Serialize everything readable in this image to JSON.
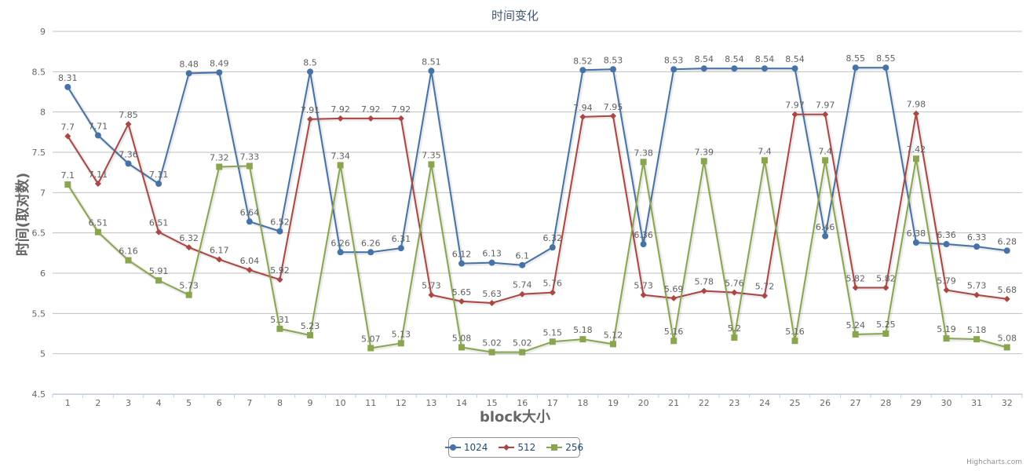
{
  "credits": "Highcharts.com",
  "chart_data": {
    "type": "line",
    "title": "时间变化",
    "xlabel": "block大小",
    "ylabel": "时间(取对数)",
    "ylim": [
      4.5,
      9
    ],
    "yticks": [
      "4.5",
      "5",
      "5.5",
      "6",
      "6.5",
      "7",
      "7.5",
      "8",
      "8.5",
      "9"
    ],
    "grid": true,
    "legend_position": "bottom-center",
    "categories": [
      "1",
      "2",
      "3",
      "4",
      "5",
      "6",
      "7",
      "8",
      "9",
      "10",
      "11",
      "12",
      "13",
      "14",
      "15",
      "16",
      "17",
      "18",
      "19",
      "20",
      "21",
      "22",
      "23",
      "24",
      "25",
      "26",
      "27",
      "28",
      "29",
      "30",
      "31",
      "32"
    ],
    "series": [
      {
        "name": "1024",
        "color": "#4572a7",
        "marker": "circle",
        "values": [
          8.31,
          7.71,
          7.36,
          7.11,
          8.48,
          8.49,
          6.64,
          6.52,
          8.5,
          6.26,
          6.26,
          6.31,
          8.51,
          6.12,
          6.13,
          6.1,
          6.32,
          8.52,
          8.53,
          6.36,
          8.53,
          8.54,
          8.54,
          8.54,
          8.54,
          6.46,
          8.55,
          8.55,
          6.38,
          6.36,
          6.33,
          6.28
        ]
      },
      {
        "name": "512",
        "color": "#aa4643",
        "marker": "diamond",
        "values": [
          7.7,
          7.11,
          7.85,
          6.51,
          6.32,
          6.17,
          6.04,
          5.92,
          7.91,
          7.92,
          7.92,
          7.92,
          5.73,
          5.65,
          5.63,
          5.74,
          5.76,
          7.94,
          7.95,
          5.73,
          5.69,
          5.78,
          5.76,
          5.72,
          7.97,
          7.97,
          5.82,
          5.82,
          7.98,
          5.79,
          5.73,
          5.68
        ]
      },
      {
        "name": "256",
        "color": "#89a54e",
        "marker": "square",
        "values": [
          7.1,
          6.51,
          6.16,
          5.91,
          5.73,
          7.32,
          7.33,
          5.31,
          5.23,
          7.34,
          5.07,
          5.13,
          7.35,
          5.08,
          5.02,
          5.02,
          5.15,
          5.18,
          5.12,
          7.38,
          5.16,
          7.39,
          5.2,
          7.4,
          5.16,
          7.4,
          5.24,
          5.25,
          7.42,
          5.19,
          5.18,
          5.08
        ]
      }
    ]
  }
}
